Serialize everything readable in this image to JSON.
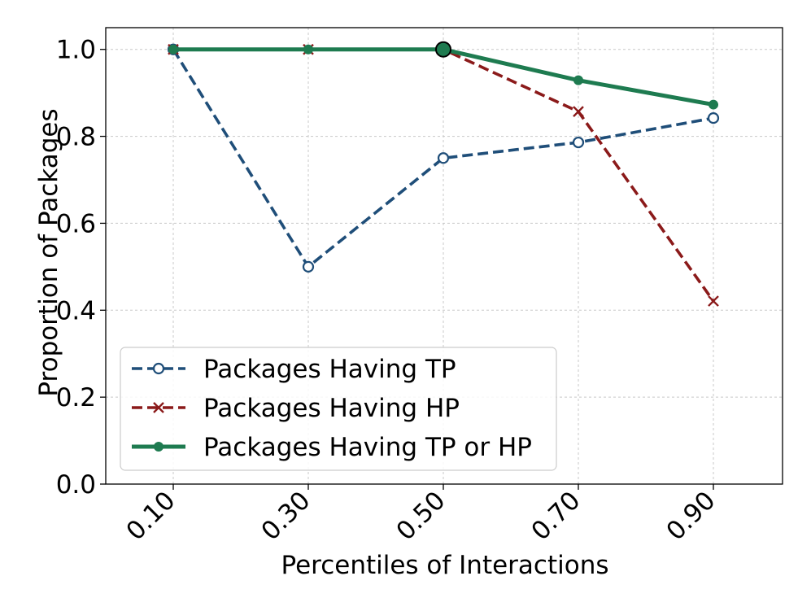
{
  "chart_data": {
    "type": "line",
    "title": "",
    "xlabel": "Percentiles of Interactions",
    "ylabel": "Proportion of Packages",
    "categories": [
      "0.10",
      "0.30",
      "0.50",
      "0.70",
      "0.90"
    ],
    "ylim": [
      0.0,
      1.05
    ],
    "yticks": [
      "0.0",
      "0.2",
      "0.4",
      "0.6",
      "0.8",
      "1.0"
    ],
    "ytick_values": [
      0.0,
      0.2,
      0.4,
      0.6,
      0.8,
      1.0
    ],
    "grid": true,
    "legend_position": "lower-left",
    "series": [
      {
        "name": "Packages Having TP",
        "values": [
          1.0,
          0.5,
          0.75,
          0.786,
          0.842
        ],
        "color": "#1f4e79",
        "line_style": "dashed",
        "marker": "open-circle"
      },
      {
        "name": "Packages Having HP",
        "values": [
          1.0,
          1.0,
          1.0,
          0.857,
          0.421
        ],
        "color": "#8b1a1a",
        "line_style": "dashed",
        "marker": "x"
      },
      {
        "name": "Packages Having TP or HP",
        "values": [
          1.0,
          1.0,
          1.0,
          0.929,
          0.873
        ],
        "color": "#1e7b50",
        "line_style": "solid",
        "marker": "filled-circle"
      }
    ],
    "highlight": {
      "category": "0.50",
      "value": 1.0,
      "color": "#1e7b50"
    }
  }
}
